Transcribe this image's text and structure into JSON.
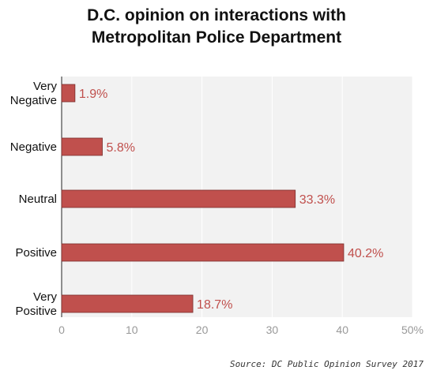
{
  "title_lines": [
    "D.C. opinion on interactions with",
    "Metropolitan Police Department"
  ],
  "source": "Source: DC Public Opinion Survey 2017",
  "colors": {
    "bar": "#c0504d",
    "bar_edge": "#7a2f2d",
    "label": "#c0504d",
    "plot_bg": "#f2f2f2",
    "grid": "#ffffff",
    "tick": "#999999"
  },
  "chart_data": {
    "type": "bar",
    "orientation": "horizontal",
    "categories": [
      [
        "Very",
        "Negative"
      ],
      [
        "Negative"
      ],
      [
        "Neutral"
      ],
      [
        "Positive"
      ],
      [
        "Very",
        "Positive"
      ]
    ],
    "values": [
      1.9,
      5.8,
      33.3,
      40.2,
      18.7
    ],
    "value_labels": [
      "1.9%",
      "5.8%",
      "33.3%",
      "40.2%",
      "18.7%"
    ],
    "xlim": [
      0,
      50
    ],
    "xticks": [
      0,
      10,
      20,
      30,
      40,
      50
    ],
    "xtick_labels": [
      "0",
      "10",
      "20",
      "30",
      "40",
      "50%"
    ],
    "grid": true
  }
}
